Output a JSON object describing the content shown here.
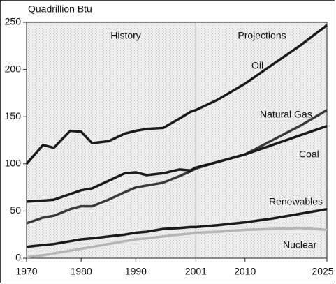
{
  "chart_data": {
    "type": "line",
    "y_label": "Quadrillion Btu",
    "annotations": [
      "History",
      "Projections"
    ],
    "divider_x": 2001,
    "x": [
      1970,
      1973,
      1975,
      1978,
      1980,
      1982,
      1985,
      1988,
      1990,
      1992,
      1995,
      1998,
      2000,
      2001,
      2005,
      2010,
      2015,
      2020,
      2025
    ],
    "series": [
      {
        "name": "Oil",
        "color": "#1a1a1a",
        "values": [
          100,
          120,
          117,
          135,
          134,
          122,
          124,
          132,
          135,
          137,
          138,
          148,
          155,
          157,
          168,
          185,
          205,
          225,
          247
        ]
      },
      {
        "name": "Natural Gas",
        "color": "#3a3a3a",
        "values": [
          37,
          43,
          45,
          52,
          55,
          55,
          62,
          70,
          75,
          77,
          80,
          87,
          92,
          95,
          102,
          110,
          125,
          140,
          157
        ]
      },
      {
        "name": "Coal",
        "color": "#1a1a1a",
        "values": [
          60,
          61,
          62,
          68,
          72,
          74,
          82,
          90,
          91,
          88,
          90,
          94,
          93,
          96,
          102,
          110,
          120,
          130,
          140
        ]
      },
      {
        "name": "Renewables",
        "color": "#1a1a1a",
        "values": [
          12,
          14,
          15,
          18,
          20,
          21,
          23,
          25,
          27,
          28,
          31,
          32,
          33,
          33,
          35,
          38,
          42,
          47,
          52
        ]
      },
      {
        "name": "Nuclear",
        "color": "#b5b5b5",
        "values": [
          1,
          3,
          5,
          8,
          10,
          12,
          15,
          18,
          20,
          21,
          23,
          25,
          26,
          27,
          28,
          30,
          31,
          32,
          30
        ]
      }
    ],
    "xlim": [
      1970,
      2025
    ],
    "xticks": [
      1970,
      1980,
      1990,
      2001,
      2010,
      2025
    ],
    "ylim": [
      0,
      250
    ],
    "yticks": [
      0,
      50,
      100,
      150,
      200,
      250
    ]
  }
}
